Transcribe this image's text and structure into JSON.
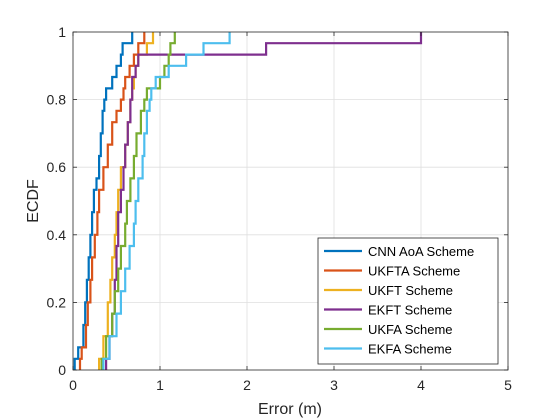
{
  "chart_data": {
    "type": "line",
    "xlabel": "Error (m)",
    "ylabel": "ECDF",
    "xlim": [
      0,
      5
    ],
    "ylim": [
      0,
      1
    ],
    "x_ticks": [
      "0",
      "1",
      "2",
      "3",
      "4",
      "5"
    ],
    "y_ticks": [
      "0",
      "0.2",
      "0.4",
      "0.6",
      "0.8",
      "1"
    ],
    "grid": true,
    "legend_position": "bottom-right",
    "series": [
      {
        "name": "CNN AoA Scheme",
        "color": "#0072BD",
        "steps": [
          [
            0.02,
            0.033
          ],
          [
            0.06,
            0.067
          ],
          [
            0.12,
            0.133
          ],
          [
            0.14,
            0.2
          ],
          [
            0.16,
            0.267
          ],
          [
            0.18,
            0.333
          ],
          [
            0.2,
            0.4
          ],
          [
            0.22,
            0.467
          ],
          [
            0.24,
            0.533
          ],
          [
            0.27,
            0.567
          ],
          [
            0.3,
            0.633
          ],
          [
            0.32,
            0.7
          ],
          [
            0.34,
            0.767
          ],
          [
            0.36,
            0.8
          ],
          [
            0.38,
            0.833
          ],
          [
            0.45,
            0.867
          ],
          [
            0.5,
            0.9
          ],
          [
            0.55,
            0.933
          ],
          [
            0.57,
            0.967
          ],
          [
            0.68,
            1.0
          ]
        ]
      },
      {
        "name": "UKFTA Scheme",
        "color": "#D95319",
        "steps": [
          [
            0.08,
            0.033
          ],
          [
            0.1,
            0.067
          ],
          [
            0.15,
            0.133
          ],
          [
            0.17,
            0.2
          ],
          [
            0.2,
            0.267
          ],
          [
            0.22,
            0.333
          ],
          [
            0.25,
            0.4
          ],
          [
            0.28,
            0.467
          ],
          [
            0.3,
            0.533
          ],
          [
            0.35,
            0.6
          ],
          [
            0.4,
            0.667
          ],
          [
            0.45,
            0.733
          ],
          [
            0.5,
            0.767
          ],
          [
            0.55,
            0.8
          ],
          [
            0.58,
            0.833
          ],
          [
            0.6,
            0.867
          ],
          [
            0.65,
            0.9
          ],
          [
            0.7,
            0.933
          ],
          [
            0.75,
            0.967
          ],
          [
            0.82,
            1.0
          ]
        ]
      },
      {
        "name": "UKFT Scheme",
        "color": "#EDB120",
        "steps": [
          [
            0.3,
            0.033
          ],
          [
            0.35,
            0.1
          ],
          [
            0.4,
            0.2
          ],
          [
            0.43,
            0.267
          ],
          [
            0.45,
            0.333
          ],
          [
            0.48,
            0.4
          ],
          [
            0.5,
            0.467
          ],
          [
            0.52,
            0.533
          ],
          [
            0.55,
            0.6
          ],
          [
            0.6,
            0.667
          ],
          [
            0.63,
            0.733
          ],
          [
            0.66,
            0.8
          ],
          [
            0.68,
            0.833
          ],
          [
            0.7,
            0.867
          ],
          [
            0.72,
            0.9
          ],
          [
            0.75,
            0.933
          ],
          [
            0.85,
            0.967
          ],
          [
            0.92,
            1.0
          ]
        ]
      },
      {
        "name": "EKFT Scheme",
        "color": "#7E2F8E",
        "steps": [
          [
            0.38,
            0.033
          ],
          [
            0.42,
            0.1
          ],
          [
            0.45,
            0.167
          ],
          [
            0.48,
            0.267
          ],
          [
            0.5,
            0.367
          ],
          [
            0.52,
            0.467
          ],
          [
            0.55,
            0.533
          ],
          [
            0.58,
            0.6
          ],
          [
            0.6,
            0.667
          ],
          [
            0.63,
            0.733
          ],
          [
            0.66,
            0.8
          ],
          [
            0.68,
            0.867
          ],
          [
            0.72,
            0.9
          ],
          [
            0.75,
            0.933
          ],
          [
            2.22,
            0.967
          ],
          [
            4.0,
            1.0
          ]
        ]
      },
      {
        "name": "UKFA Scheme",
        "color": "#77AC30",
        "steps": [
          [
            0.33,
            0.033
          ],
          [
            0.38,
            0.1
          ],
          [
            0.45,
            0.167
          ],
          [
            0.48,
            0.233
          ],
          [
            0.52,
            0.3
          ],
          [
            0.55,
            0.367
          ],
          [
            0.6,
            0.433
          ],
          [
            0.62,
            0.5
          ],
          [
            0.66,
            0.567
          ],
          [
            0.7,
            0.633
          ],
          [
            0.73,
            0.7
          ],
          [
            0.78,
            0.767
          ],
          [
            0.82,
            0.8
          ],
          [
            0.85,
            0.833
          ],
          [
            1.0,
            0.867
          ],
          [
            1.05,
            0.9
          ],
          [
            1.1,
            0.933
          ],
          [
            1.12,
            0.967
          ],
          [
            1.17,
            1.0
          ]
        ]
      },
      {
        "name": "EKFA Scheme",
        "color": "#4DBEEE",
        "steps": [
          [
            0.35,
            0.033
          ],
          [
            0.42,
            0.1
          ],
          [
            0.5,
            0.167
          ],
          [
            0.55,
            0.233
          ],
          [
            0.6,
            0.3
          ],
          [
            0.65,
            0.367
          ],
          [
            0.7,
            0.433
          ],
          [
            0.72,
            0.5
          ],
          [
            0.75,
            0.567
          ],
          [
            0.8,
            0.633
          ],
          [
            0.82,
            0.7
          ],
          [
            0.85,
            0.767
          ],
          [
            0.88,
            0.8
          ],
          [
            0.9,
            0.833
          ],
          [
            0.95,
            0.867
          ],
          [
            1.1,
            0.9
          ],
          [
            1.3,
            0.933
          ],
          [
            1.5,
            0.967
          ],
          [
            1.8,
            1.0
          ]
        ]
      }
    ]
  }
}
